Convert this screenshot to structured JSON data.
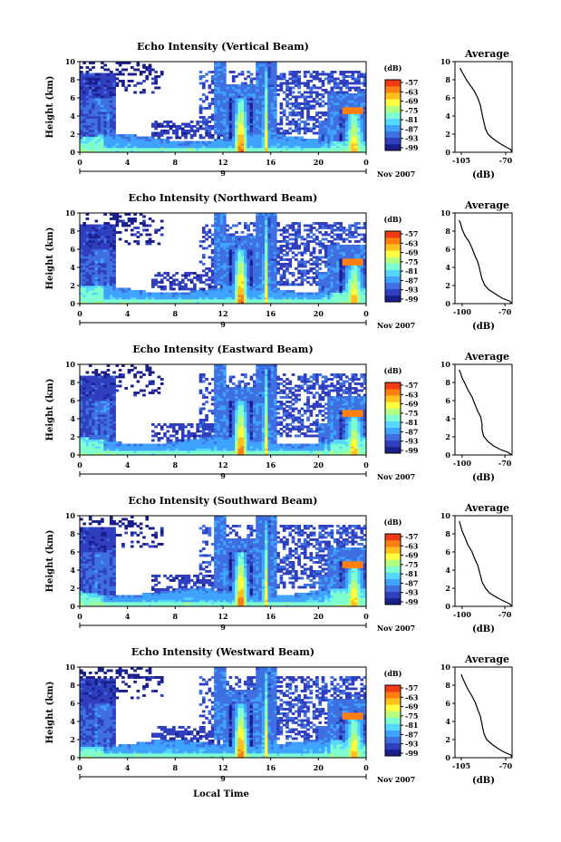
{
  "colormap": [
    "#1a1f8c",
    "#2f3fbf",
    "#3f6fe0",
    "#3fa3ff",
    "#55d8ff",
    "#7fffd0",
    "#b6ff7f",
    "#ffff40",
    "#ffc020",
    "#ff8010",
    "#f23a14"
  ],
  "common": {
    "ylabel": "Height (km)",
    "yticks": [
      "0",
      "2",
      "4",
      "6",
      "8",
      "10"
    ],
    "xticks": [
      "0",
      "4",
      "8",
      "12",
      "16",
      "20",
      "0"
    ],
    "day_label": "9",
    "date_label": "Nov 2007",
    "xlabel": "Local Time",
    "colorbar_unit": "(dB)",
    "colorbar_ticks": [
      "-57",
      "-63",
      "-69",
      "-75",
      "-81",
      "-87",
      "-93",
      "-99"
    ],
    "avg_title": "Average",
    "avg_xlabel": "(dB)",
    "avg_yticks": [
      "0",
      "2",
      "4",
      "6",
      "8",
      "10"
    ]
  },
  "chart_data": [
    {
      "type": "heatmap",
      "title": "Echo Intensity (Vertical Beam)",
      "x_range": [
        0,
        24
      ],
      "y_range": [
        0,
        10
      ],
      "avg_xticks": [
        "-105",
        "-70"
      ],
      "avg_xlim": [
        -110,
        -65
      ],
      "avg_profile": [
        [
          -60,
          0.0
        ],
        [
          -66,
          0.3
        ],
        [
          -70,
          0.6
        ],
        [
          -75,
          1.0
        ],
        [
          -80,
          1.5
        ],
        [
          -84,
          2.0
        ],
        [
          -86,
          2.6
        ],
        [
          -87,
          3.2
        ],
        [
          -88,
          3.8
        ],
        [
          -89,
          4.5
        ],
        [
          -90,
          5.2
        ],
        [
          -92,
          6.0
        ],
        [
          -95,
          6.8
        ],
        [
          -98,
          7.4
        ],
        [
          -101,
          8.0
        ],
        [
          -103,
          8.5
        ],
        [
          -105,
          9.0
        ],
        [
          -106,
          9.3
        ]
      ]
    },
    {
      "type": "heatmap",
      "title": "Echo Intensity (Northward Beam)",
      "x_range": [
        0,
        24
      ],
      "y_range": [
        0,
        10
      ],
      "avg_xticks": [
        "-100",
        "-70"
      ],
      "avg_xlim": [
        -105,
        -65
      ],
      "avg_profile": [
        [
          -62,
          0.0
        ],
        [
          -67,
          0.3
        ],
        [
          -72,
          0.6
        ],
        [
          -76,
          1.0
        ],
        [
          -81,
          1.5
        ],
        [
          -84,
          2.0
        ],
        [
          -86,
          2.7
        ],
        [
          -87,
          3.3
        ],
        [
          -88,
          4.0
        ],
        [
          -89,
          4.6
        ],
        [
          -91,
          5.3
        ],
        [
          -93,
          6.1
        ],
        [
          -95,
          6.8
        ],
        [
          -98,
          7.5
        ],
        [
          -100,
          8.2
        ],
        [
          -101,
          8.8
        ],
        [
          -102,
          9.2
        ]
      ]
    },
    {
      "type": "heatmap",
      "title": "Echo Intensity (Eastward Beam)",
      "x_range": [
        0,
        24
      ],
      "y_range": [
        0,
        10
      ],
      "avg_xticks": [
        "-100",
        "-70"
      ],
      "avg_xlim": [
        -105,
        -65
      ],
      "avg_profile": [
        [
          -64,
          0.0
        ],
        [
          -68,
          0.3
        ],
        [
          -73,
          0.6
        ],
        [
          -78,
          1.0
        ],
        [
          -82,
          1.5
        ],
        [
          -85,
          2.1
        ],
        [
          -86,
          2.8
        ],
        [
          -86,
          3.4
        ],
        [
          -87,
          4.2
        ],
        [
          -89,
          4.8
        ],
        [
          -91,
          5.6
        ],
        [
          -93,
          6.4
        ],
        [
          -96,
          7.2
        ],
        [
          -98,
          7.9
        ],
        [
          -100,
          8.5
        ],
        [
          -101,
          9.0
        ],
        [
          -102,
          9.4
        ]
      ]
    },
    {
      "type": "heatmap",
      "title": "Echo Intensity (Southward Beam)",
      "x_range": [
        0,
        24
      ],
      "y_range": [
        0,
        10
      ],
      "avg_xticks": [
        "-100",
        "-70"
      ],
      "avg_xlim": [
        -105,
        -65
      ],
      "avg_profile": [
        [
          -63,
          0.0
        ],
        [
          -67,
          0.3
        ],
        [
          -71,
          0.6
        ],
        [
          -76,
          1.0
        ],
        [
          -81,
          1.5
        ],
        [
          -84,
          2.1
        ],
        [
          -86,
          2.7
        ],
        [
          -87,
          3.3
        ],
        [
          -88,
          3.9
        ],
        [
          -89,
          4.5
        ],
        [
          -91,
          5.2
        ],
        [
          -93,
          6.0
        ],
        [
          -96,
          6.8
        ],
        [
          -98,
          7.6
        ],
        [
          -100,
          8.3
        ],
        [
          -101,
          8.9
        ],
        [
          -102,
          9.4
        ]
      ]
    },
    {
      "type": "heatmap",
      "title": "Echo Intensity (Westward Beam)",
      "x_range": [
        0,
        24
      ],
      "y_range": [
        0,
        10
      ],
      "avg_xticks": [
        "-105",
        "-70"
      ],
      "avg_xlim": [
        -110,
        -65
      ],
      "avg_profile": [
        [
          -61,
          0.0
        ],
        [
          -66,
          0.3
        ],
        [
          -71,
          0.6
        ],
        [
          -76,
          1.0
        ],
        [
          -81,
          1.5
        ],
        [
          -85,
          2.0
        ],
        [
          -87,
          2.6
        ],
        [
          -88,
          3.2
        ],
        [
          -89,
          3.9
        ],
        [
          -90,
          4.6
        ],
        [
          -92,
          5.3
        ],
        [
          -94,
          6.1
        ],
        [
          -97,
          6.9
        ],
        [
          -100,
          7.6
        ],
        [
          -102,
          8.2
        ],
        [
          -104,
          8.8
        ],
        [
          -105,
          9.2
        ]
      ]
    }
  ]
}
